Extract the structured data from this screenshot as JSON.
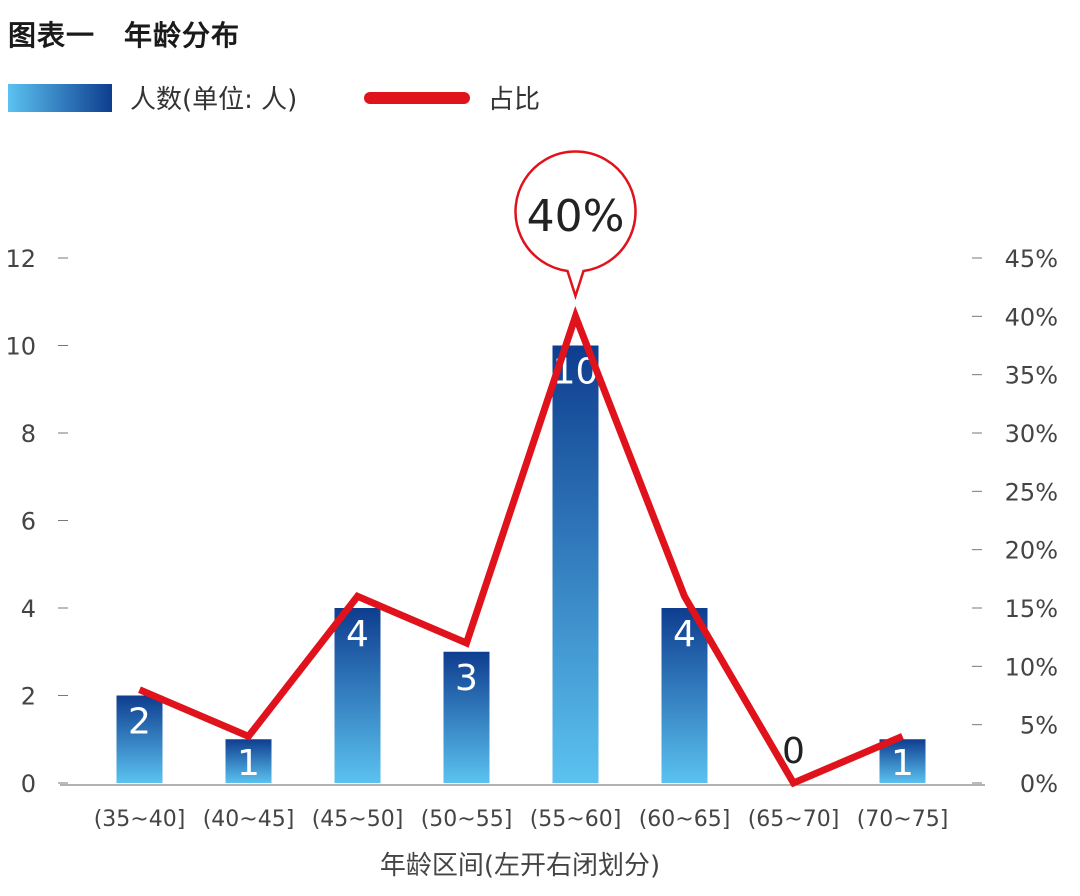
{
  "chart_data": {
    "type": "bar",
    "title": "图表一　年龄分布",
    "categories": [
      "(35~40]",
      "(40~45]",
      "(45~50]",
      "(50~55]",
      "(55~60]",
      "(60~65]",
      "(65~70]",
      "(70~75]"
    ],
    "series": [
      {
        "name": "人数(单位: 人)",
        "type": "bar",
        "axis": "left",
        "values": [
          2,
          1,
          4,
          3,
          10,
          4,
          0,
          1
        ],
        "labels": [
          "2",
          "1",
          "4",
          "3",
          "10",
          "4",
          "0",
          "1"
        ]
      },
      {
        "name": "占比",
        "type": "line",
        "axis": "right",
        "values": [
          8,
          4,
          16,
          12,
          40,
          16,
          0,
          4
        ]
      }
    ],
    "xlabel": "年龄区间(左开右闭划分)",
    "ylim": [
      0,
      12
    ],
    "y_ticks": [
      "0",
      "2",
      "4",
      "6",
      "8",
      "10",
      "12"
    ],
    "y2lim": [
      0,
      45
    ],
    "y2_ticks": [
      "0%",
      "5%",
      "10%",
      "15%",
      "20%",
      "25%",
      "30%",
      "35%",
      "40%",
      "45%"
    ],
    "callout": "40%",
    "legend_position": "top-left",
    "colors": {
      "bar_top": "#0e3d8f",
      "bar_bottom": "#5bc2f0",
      "line": "#e0121b"
    }
  }
}
